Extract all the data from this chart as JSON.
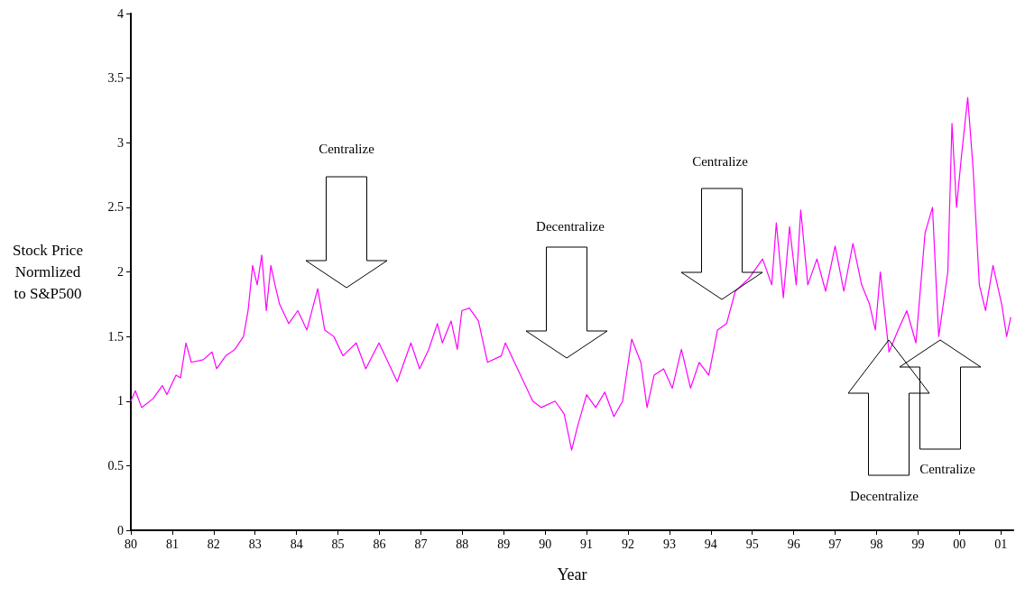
{
  "chart_data": {
    "type": "line",
    "xlabel": "Year",
    "ylabel": "Stock Price\nNormlized\nto S&P500",
    "xlim": [
      1980,
      2001.3
    ],
    "ylim": [
      0,
      4
    ],
    "xticks": [
      {
        "value": 1980,
        "label": "80"
      },
      {
        "value": 1981,
        "label": "81"
      },
      {
        "value": 1982,
        "label": "82"
      },
      {
        "value": 1983,
        "label": "83"
      },
      {
        "value": 1984,
        "label": "84"
      },
      {
        "value": 1985,
        "label": "85"
      },
      {
        "value": 1986,
        "label": "86"
      },
      {
        "value": 1987,
        "label": "87"
      },
      {
        "value": 1988,
        "label": "88"
      },
      {
        "value": 1989,
        "label": "89"
      },
      {
        "value": 1990,
        "label": "90"
      },
      {
        "value": 1991,
        "label": "91"
      },
      {
        "value": 1992,
        "label": "92"
      },
      {
        "value": 1993,
        "label": "93"
      },
      {
        "value": 1994,
        "label": "94"
      },
      {
        "value": 1995,
        "label": "95"
      },
      {
        "value": 1996,
        "label": "96"
      },
      {
        "value": 1997,
        "label": "97"
      },
      {
        "value": 1998,
        "label": "98"
      },
      {
        "value": 1999,
        "label": "99"
      },
      {
        "value": 2000,
        "label": "00"
      },
      {
        "value": 2001,
        "label": "01"
      }
    ],
    "yticks": [
      0,
      0.5,
      1,
      1.5,
      2,
      2.5,
      3,
      3.5,
      4
    ],
    "grid": false,
    "marker": "none",
    "line_style": "solid",
    "series": [
      {
        "color": "#ff00ff",
        "x": [
          1980,
          1980.11,
          1980.26,
          1980.54,
          1980.76,
          1980.87,
          1981.09,
          1981.2,
          1981.33,
          1981.46,
          1981.75,
          1981.96,
          1982.07,
          1982.29,
          1982.51,
          1982.72,
          1982.83,
          1982.94,
          1983.05,
          1983.16,
          1983.27,
          1983.38,
          1983.48,
          1983.59,
          1983.81,
          1984.03,
          1984.25,
          1984.51,
          1984.68,
          1984.9,
          1985.12,
          1985.44,
          1985.67,
          1985.99,
          1986.21,
          1986.43,
          1986.76,
          1986.97,
          1987.19,
          1987.4,
          1987.52,
          1987.73,
          1987.88,
          1987.99,
          1988.17,
          1988.39,
          1988.61,
          1988.94,
          1989.04,
          1989.26,
          1989.48,
          1989.7,
          1989.91,
          1990.24,
          1990.46,
          1990.64,
          1990.78,
          1991,
          1991.22,
          1991.44,
          1991.66,
          1991.87,
          1992.09,
          1992.31,
          1992.46,
          1992.63,
          1992.86,
          1993.07,
          1993.29,
          1993.51,
          1993.72,
          1993.95,
          1994.16,
          1994.38,
          1994.59,
          1994.92,
          1995.25,
          1995.47,
          1995.58,
          1995.75,
          1995.9,
          1996.06,
          1996.17,
          1996.34,
          1996.56,
          1996.77,
          1997,
          1997.21,
          1997.43,
          1997.64,
          1997.83,
          1997.97,
          1998.09,
          1998.3,
          1998.52,
          1998.73,
          1998.95,
          1999.17,
          1999.35,
          1999.5,
          1999.72,
          1999.82,
          1999.93,
          2000.05,
          2000.2,
          2000.33,
          2000.48,
          2000.63,
          2000.81,
          2001.02,
          2001.14,
          2001.24
        ],
        "values": [
          1.0,
          1.08,
          0.95,
          1.02,
          1.12,
          1.05,
          1.2,
          1.18,
          1.45,
          1.3,
          1.32,
          1.38,
          1.25,
          1.35,
          1.4,
          1.5,
          1.7,
          2.05,
          1.9,
          2.13,
          1.7,
          2.05,
          1.9,
          1.75,
          1.6,
          1.7,
          1.55,
          1.87,
          1.55,
          1.5,
          1.35,
          1.45,
          1.25,
          1.45,
          1.3,
          1.15,
          1.45,
          1.25,
          1.4,
          1.6,
          1.45,
          1.62,
          1.4,
          1.7,
          1.72,
          1.62,
          1.3,
          1.35,
          1.45,
          1.3,
          1.15,
          1.0,
          0.95,
          1.0,
          0.9,
          0.62,
          0.8,
          1.05,
          0.95,
          1.07,
          0.88,
          1.0,
          1.48,
          1.3,
          0.95,
          1.2,
          1.25,
          1.1,
          1.4,
          1.1,
          1.3,
          1.2,
          1.55,
          1.6,
          1.85,
          1.95,
          2.1,
          1.9,
          2.38,
          1.8,
          2.35,
          1.9,
          2.48,
          1.9,
          2.1,
          1.85,
          2.2,
          1.85,
          2.22,
          1.9,
          1.75,
          1.55,
          2.0,
          1.38,
          1.55,
          1.7,
          1.45,
          2.3,
          2.5,
          1.5,
          2.0,
          3.15,
          2.5,
          2.9,
          3.35,
          2.8,
          1.9,
          1.7,
          2.05,
          1.75,
          1.5,
          1.65
        ]
      }
    ],
    "annotations": [
      "Centralize",
      "Decentralize",
      "Centralize",
      "Decentralize",
      "Centralize"
    ]
  }
}
